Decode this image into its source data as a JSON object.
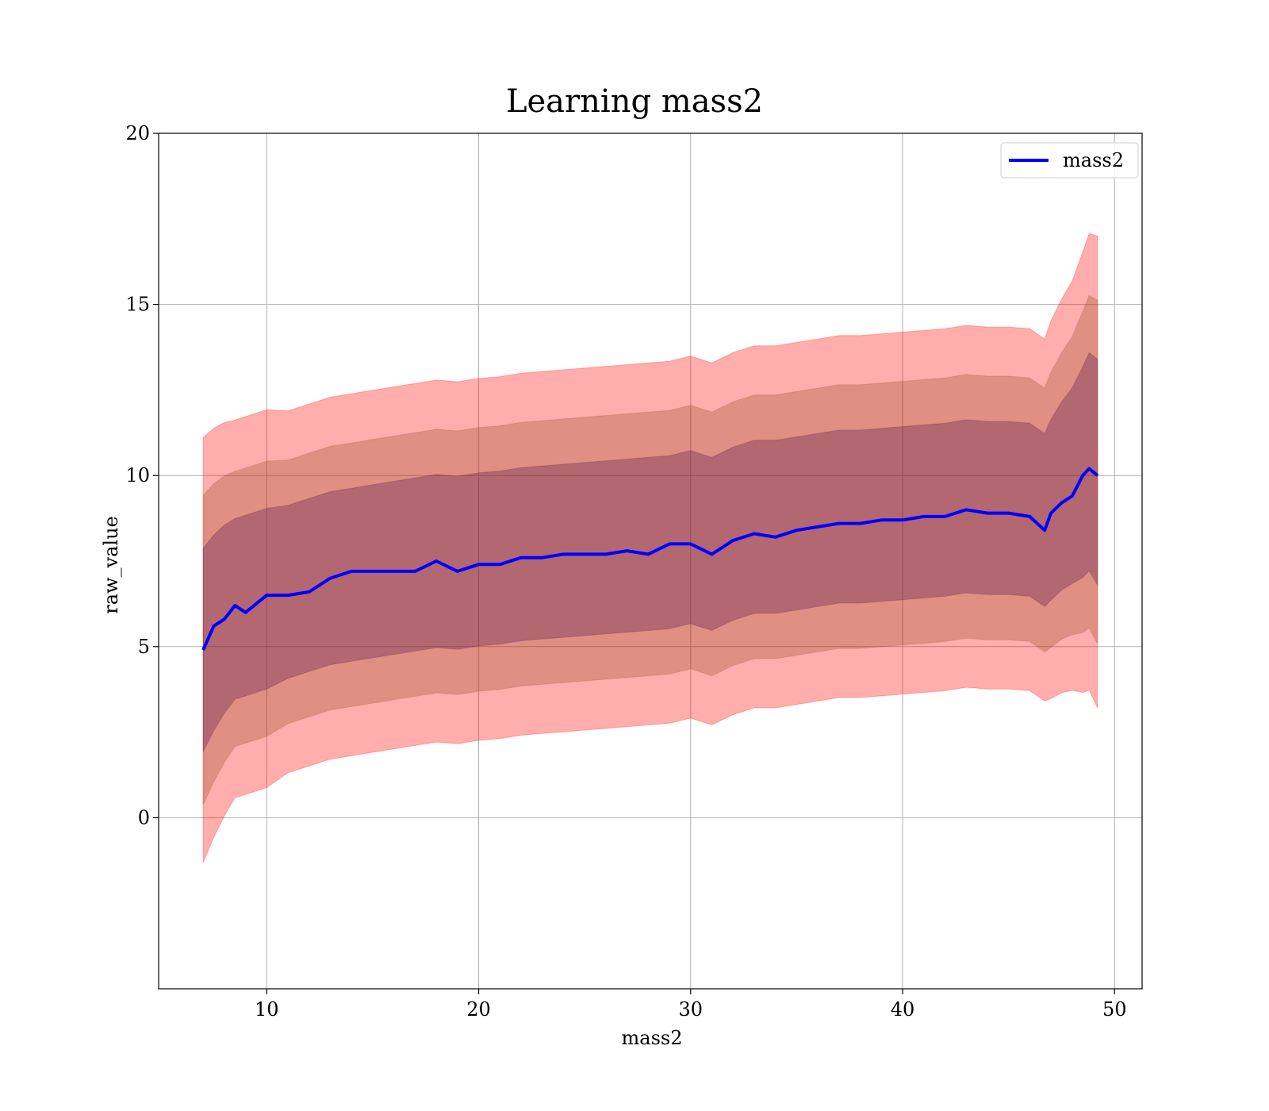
{
  "chart_data": {
    "type": "line",
    "title": "Learning mass2",
    "xlabel": "mass2",
    "ylabel": "raw_value",
    "xlim": [
      4.9,
      51.3
    ],
    "ylim": [
      -5,
      20
    ],
    "xticks": [
      10,
      20,
      30,
      40,
      50
    ],
    "yticks": [
      0,
      5,
      10,
      15,
      20
    ],
    "grid": true,
    "legend": {
      "placement": "top-right",
      "entries": [
        "mass2"
      ]
    },
    "colors": {
      "line": "#0000ff",
      "band": "#ff0000",
      "band3_fill": "#ffaaaa",
      "grid": "#b0b0b0"
    },
    "series": [
      {
        "name": "mass2",
        "x": [
          7.0,
          7.5,
          8.0,
          8.5,
          9.0,
          10.0,
          11.0,
          12.0,
          13.0,
          14.0,
          15.0,
          16.0,
          17.0,
          18.0,
          19.0,
          20.0,
          21.0,
          22.0,
          23.0,
          24.0,
          25.0,
          26.0,
          27.0,
          28.0,
          29.0,
          30.0,
          31.0,
          32.0,
          33.0,
          34.0,
          35.0,
          36.0,
          37.0,
          38.0,
          39.0,
          40.0,
          41.0,
          42.0,
          43.0,
          44.0,
          45.0,
          46.0,
          46.7,
          47.0,
          47.5,
          48.0,
          48.5,
          48.8,
          49.2
        ],
        "y": [
          4.9,
          5.6,
          5.8,
          6.2,
          6.0,
          6.5,
          6.5,
          6.6,
          7.0,
          7.2,
          7.2,
          7.2,
          7.2,
          7.5,
          7.2,
          7.4,
          7.4,
          7.6,
          7.6,
          7.7,
          7.7,
          7.7,
          7.8,
          7.7,
          8.0,
          8.0,
          7.7,
          8.1,
          8.3,
          8.2,
          8.4,
          8.5,
          8.6,
          8.6,
          8.7,
          8.7,
          8.8,
          8.8,
          9.0,
          8.9,
          8.9,
          8.8,
          8.4,
          8.9,
          9.2,
          9.4,
          10.0,
          10.2,
          10.0
        ]
      }
    ],
    "bands": {
      "sigma": [
        1.35,
        1.3,
        1.25,
        1.2,
        1.2,
        1.2,
        1.15,
        1.15,
        1.15,
        1.15,
        1.15,
        1.15,
        1.15,
        1.15,
        1.15,
        1.15,
        1.15,
        1.15,
        1.15,
        1.15,
        1.15,
        1.15,
        1.15,
        1.15,
        1.15,
        1.15,
        1.15,
        1.15,
        1.15,
        1.15,
        1.15,
        1.15,
        1.15,
        1.15,
        1.15,
        1.15,
        1.15,
        1.15,
        1.15,
        1.15,
        1.15,
        1.15,
        1.15,
        1.2,
        1.25,
        1.3,
        1.4,
        1.45,
        1.5
      ],
      "mean": [
        4.9,
        5.4,
        5.8,
        6.1,
        6.2,
        6.4,
        6.6,
        6.8,
        7.0,
        7.1,
        7.2,
        7.3,
        7.4,
        7.5,
        7.45,
        7.55,
        7.6,
        7.7,
        7.75,
        7.8,
        7.85,
        7.9,
        7.95,
        8.0,
        8.05,
        8.2,
        8.0,
        8.3,
        8.5,
        8.5,
        8.6,
        8.7,
        8.8,
        8.8,
        8.85,
        8.9,
        8.95,
        9.0,
        9.1,
        9.05,
        9.05,
        9.0,
        8.7,
        9.0,
        9.4,
        9.7,
        10.1,
        10.4,
        10.1
      ]
    }
  }
}
